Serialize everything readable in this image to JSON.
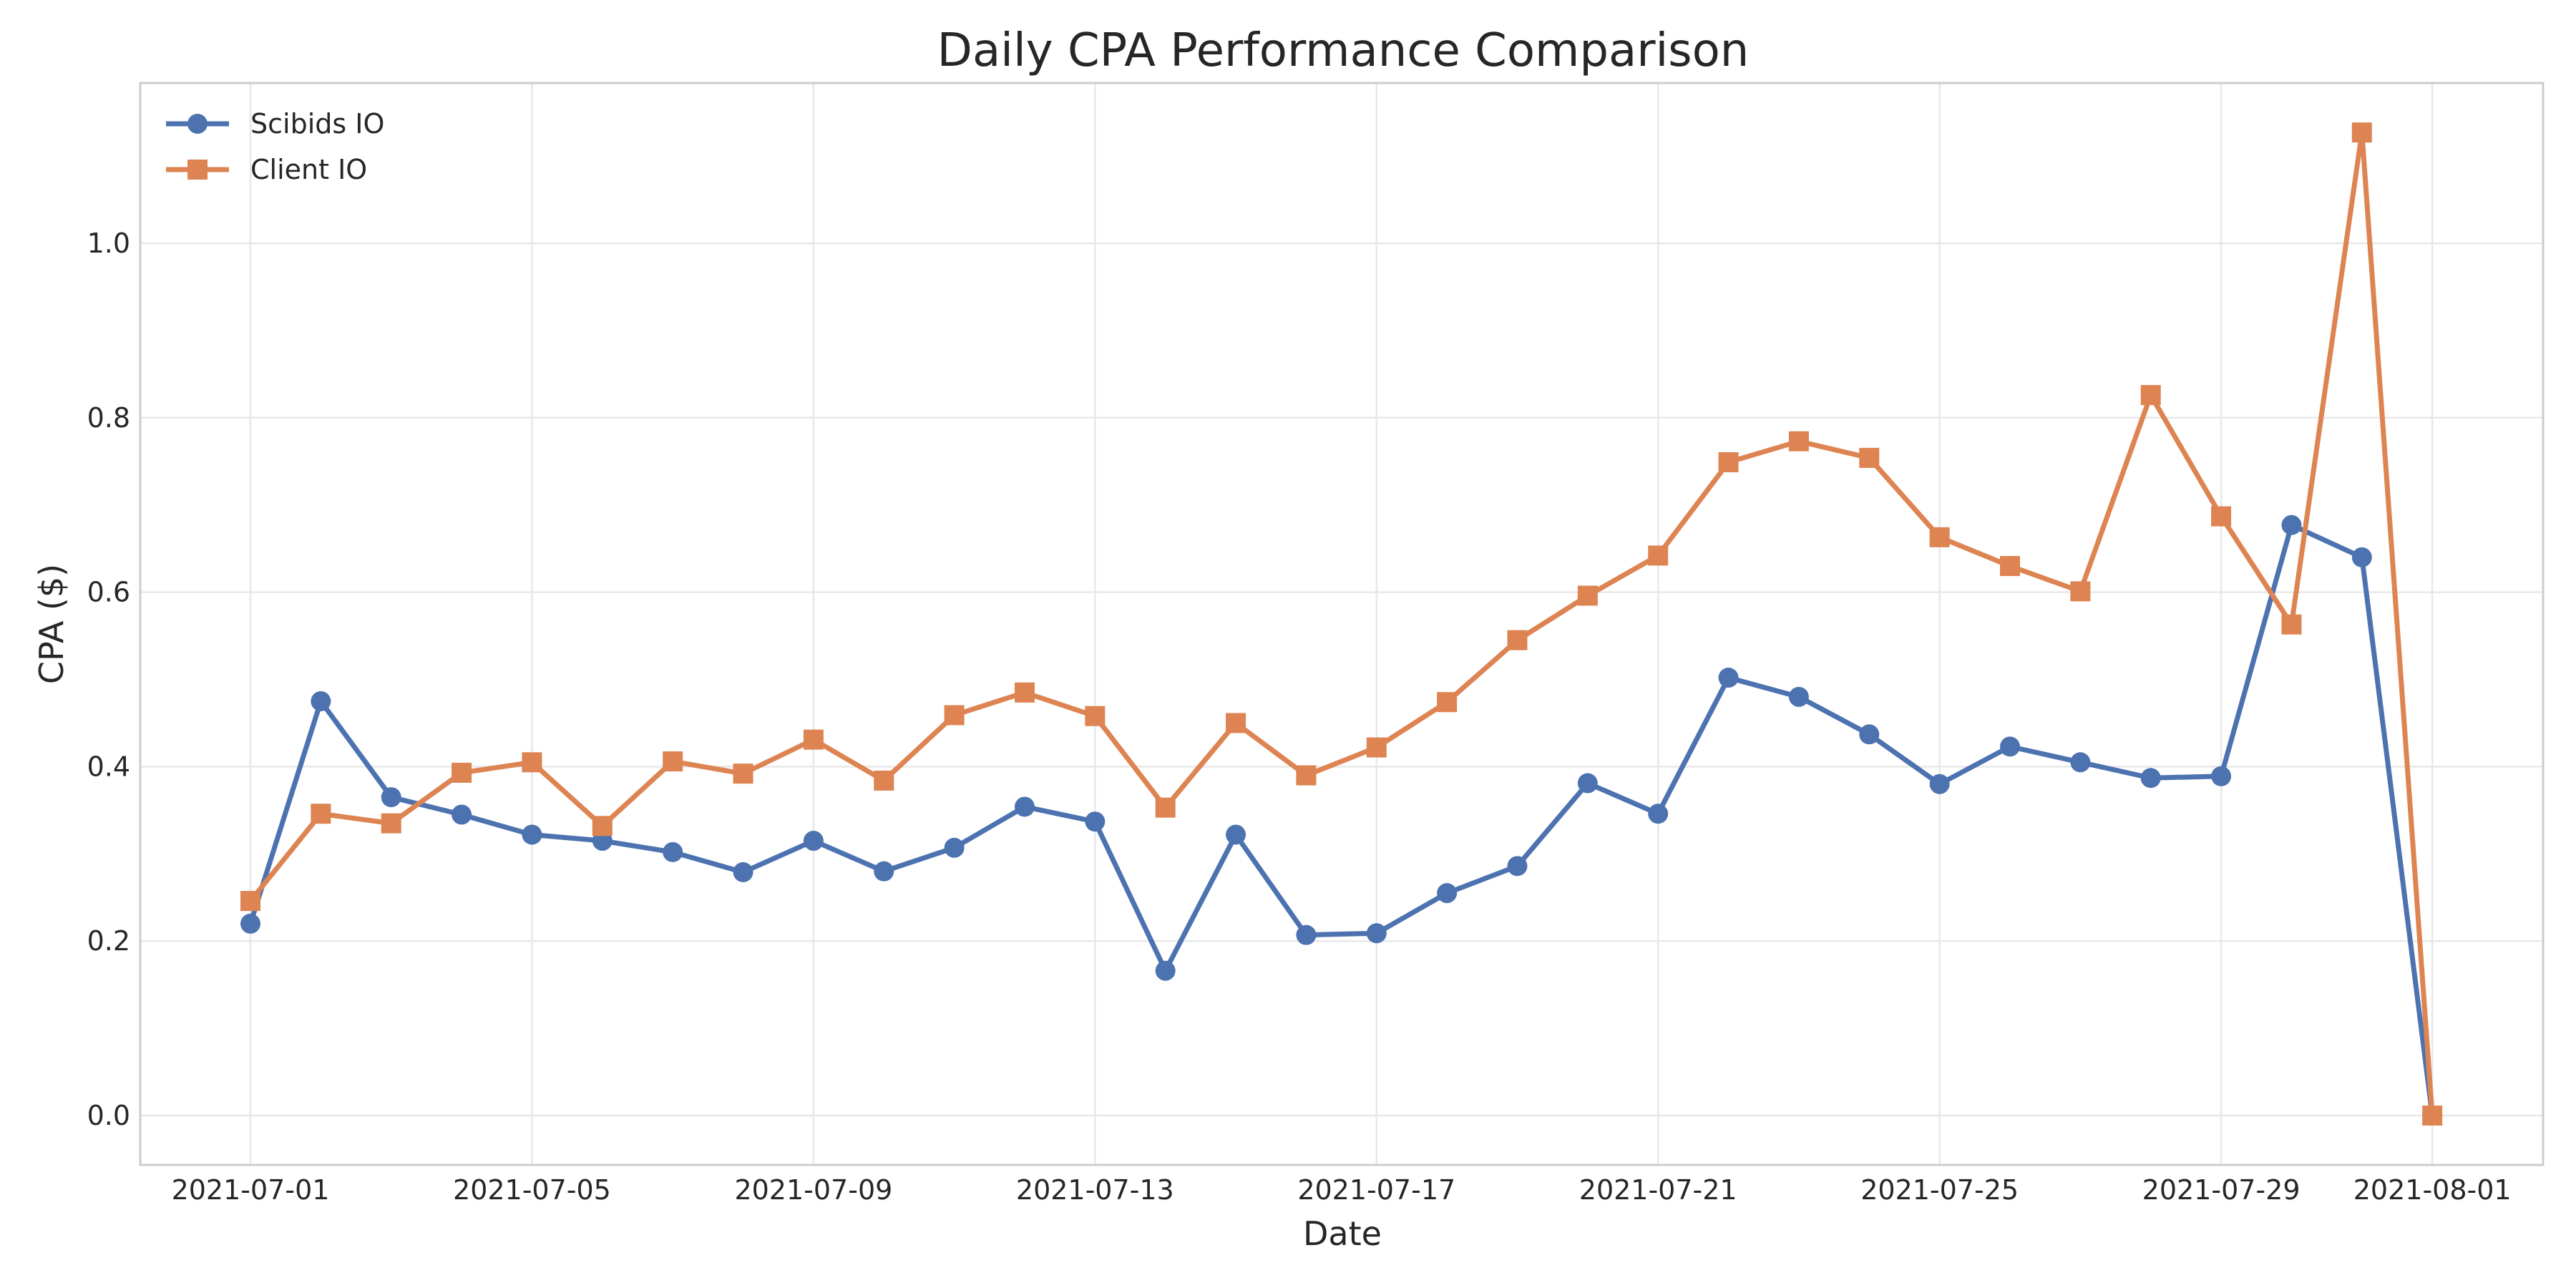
{
  "chart_data": {
    "type": "line",
    "title": "Daily CPA Performance Comparison",
    "xlabel": "Date",
    "ylabel": "CPA ($)",
    "x": [
      "2021-07-01",
      "2021-07-02",
      "2021-07-03",
      "2021-07-04",
      "2021-07-05",
      "2021-07-06",
      "2021-07-07",
      "2021-07-08",
      "2021-07-09",
      "2021-07-10",
      "2021-07-11",
      "2021-07-12",
      "2021-07-13",
      "2021-07-14",
      "2021-07-15",
      "2021-07-16",
      "2021-07-17",
      "2021-07-18",
      "2021-07-19",
      "2021-07-20",
      "2021-07-21",
      "2021-07-22",
      "2021-07-23",
      "2021-07-24",
      "2021-07-25",
      "2021-07-26",
      "2021-07-27",
      "2021-07-28",
      "2021-07-29",
      "2021-07-30",
      "2021-07-31",
      "2021-08-01"
    ],
    "x_ticks": [
      "2021-07-01",
      "2021-07-05",
      "2021-07-09",
      "2021-07-13",
      "2021-07-17",
      "2021-07-21",
      "2021-07-25",
      "2021-07-29",
      "2021-08-01"
    ],
    "y_ticks": [
      "0.0",
      "0.2",
      "0.4",
      "0.6",
      "0.8",
      "1.0"
    ],
    "ylim": [
      -0.056,
      1.22
    ],
    "grid": true,
    "legend_position": "top-left",
    "series": [
      {
        "name": "Scibids IO",
        "color": "#4c72b0",
        "marker": "circle",
        "values": [
          0.22,
          0.475,
          0.365,
          0.345,
          0.322,
          0.315,
          0.302,
          0.279,
          0.315,
          0.28,
          0.307,
          0.354,
          0.337,
          0.166,
          0.322,
          0.207,
          0.209,
          0.255,
          0.286,
          0.381,
          0.346,
          0.502,
          0.48,
          0.437,
          0.38,
          0.423,
          0.405,
          0.387,
          0.389,
          0.677,
          0.64,
          0.0
        ]
      },
      {
        "name": "Client IO",
        "color": "#dd8452",
        "marker": "square",
        "values": [
          0.246,
          0.346,
          0.335,
          0.393,
          0.405,
          0.332,
          0.406,
          0.392,
          0.431,
          0.384,
          0.459,
          0.485,
          0.458,
          0.353,
          0.45,
          0.39,
          0.422,
          0.474,
          0.545,
          0.596,
          0.642,
          0.749,
          0.773,
          0.754,
          0.663,
          0.63,
          0.601,
          0.826,
          0.687,
          0.563,
          1.127,
          0.0
        ]
      }
    ]
  }
}
